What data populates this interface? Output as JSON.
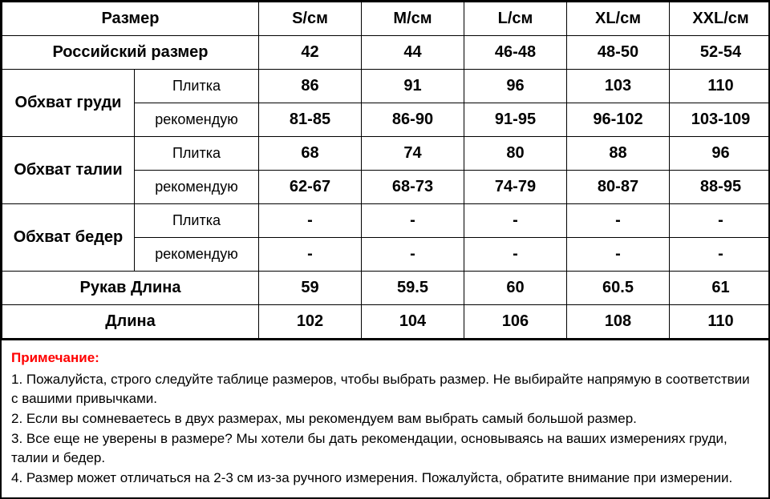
{
  "table": {
    "header_size_label": "Размер",
    "russian_size_label": "Российский размер",
    "sizes": [
      "S/см",
      "M/см",
      "L/см",
      "XL/см",
      "XXL/см"
    ],
    "russian_sizes": [
      "42",
      "44",
      "46-48",
      "48-50",
      "52-54"
    ],
    "groups": [
      {
        "label": "Обхват груди",
        "rows": [
          {
            "sub": "Плитка",
            "vals": [
              "86",
              "91",
              "96",
              "103",
              "110"
            ]
          },
          {
            "sub": "рекомендую",
            "vals": [
              "81-85",
              "86-90",
              "91-95",
              "96-102",
              "103-109"
            ]
          }
        ]
      },
      {
        "label": "Обхват талии",
        "rows": [
          {
            "sub": "Плитка",
            "vals": [
              "68",
              "74",
              "80",
              "88",
              "96"
            ]
          },
          {
            "sub": "рекомендую",
            "vals": [
              "62-67",
              "68-73",
              "74-79",
              "80-87",
              "88-95"
            ]
          }
        ]
      },
      {
        "label": "Обхват бедер",
        "rows": [
          {
            "sub": "Плитка",
            "vals": [
              "-",
              "-",
              "-",
              "-",
              "-"
            ]
          },
          {
            "sub": "рекомендую",
            "vals": [
              "-",
              "-",
              "-",
              "-",
              "-"
            ]
          }
        ]
      }
    ],
    "simple_rows": [
      {
        "label": "Рукав Длина",
        "vals": [
          "59",
          "59.5",
          "60",
          "60.5",
          "61"
        ]
      },
      {
        "label": "Длина",
        "vals": [
          "102",
          "104",
          "106",
          "108",
          "110"
        ]
      }
    ]
  },
  "notes": {
    "title": "Примечание:",
    "lines": [
      "1. Пожалуйста, строго следуйте таблице размеров, чтобы выбрать размер. Не выбирайте напрямую в соответствии с вашими привычками.",
      "2. Если вы сомневаетесь в двух размерах, мы рекомендуем вам выбрать самый большой размер.",
      "3. Все еще не уверены в размере? Мы хотели бы дать рекомендации, основываясь на ваших измерениях груди, талии и бедер.",
      "4. Размер может отличаться на 2-3 см из-за ручного измерения. Пожалуйста, обратите внимание при измерении."
    ]
  },
  "style": {
    "border_color": "#000000",
    "bg_color": "#ffffff",
    "note_title_color": "#ff0000",
    "font_family": "Arial",
    "header_fontsize": 20,
    "sub_fontsize": 18,
    "notes_fontsize": 17
  }
}
